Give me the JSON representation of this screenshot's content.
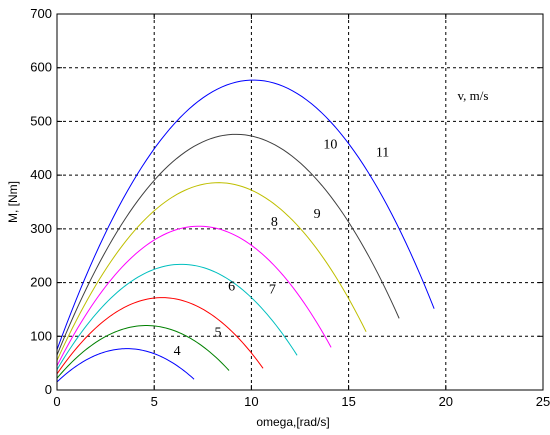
{
  "chart_data": {
    "type": "line",
    "xlabel": "omega,[rad/s]",
    "ylabel": "M, [Nm]",
    "annotation": "v, m/s",
    "xlim": [
      0,
      25
    ],
    "ylim": [
      0,
      700
    ],
    "xticks": [
      0,
      5,
      10,
      15,
      20,
      25
    ],
    "yticks": [
      0,
      100,
      200,
      300,
      400,
      500,
      600,
      700
    ],
    "grid": true,
    "series": [
      {
        "name": "4",
        "color": "#0000ff",
        "x_peak": 3.6,
        "y_peak": 77,
        "x_zero": 7.05,
        "y_start": 15
      },
      {
        "name": "5",
        "color": "#008000",
        "x_peak": 4.6,
        "y_peak": 120,
        "x_zero": 8.85,
        "y_start": 22
      },
      {
        "name": "6",
        "color": "#ff0000",
        "x_peak": 5.4,
        "y_peak": 172,
        "x_zero": 10.6,
        "y_start": 30
      },
      {
        "name": "7",
        "color": "#00bfbf",
        "x_peak": 6.4,
        "y_peak": 234,
        "x_zero": 12.35,
        "y_start": 38
      },
      {
        "name": "8",
        "color": "#ff00ff",
        "x_peak": 7.3,
        "y_peak": 305,
        "x_zero": 14.1,
        "y_start": 45
      },
      {
        "name": "9",
        "color": "#bfbf00",
        "x_peak": 8.3,
        "y_peak": 386,
        "x_zero": 15.9,
        "y_start": 55
      },
      {
        "name": "10",
        "color": "#404040",
        "x_peak": 9.2,
        "y_peak": 476,
        "x_zero": 17.6,
        "y_start": 65
      },
      {
        "name": "11",
        "color": "#0000ff",
        "x_peak": 10.1,
        "y_peak": 577,
        "x_zero": 19.4,
        "y_start": 75
      }
    ],
    "series_labels": [
      {
        "text": "4",
        "x": 6.0,
        "y": 65
      },
      {
        "text": "5",
        "x": 8.1,
        "y": 100
      },
      {
        "text": "6",
        "x": 8.8,
        "y": 185
      },
      {
        "text": "7",
        "x": 10.9,
        "y": 180
      },
      {
        "text": "8",
        "x": 11.0,
        "y": 305
      },
      {
        "text": "9",
        "x": 13.2,
        "y": 320
      },
      {
        "text": "10",
        "x": 13.7,
        "y": 450
      },
      {
        "text": "11",
        "x": 16.4,
        "y": 435
      }
    ],
    "annotation_pos": {
      "x": 20.6,
      "y": 540
    }
  }
}
